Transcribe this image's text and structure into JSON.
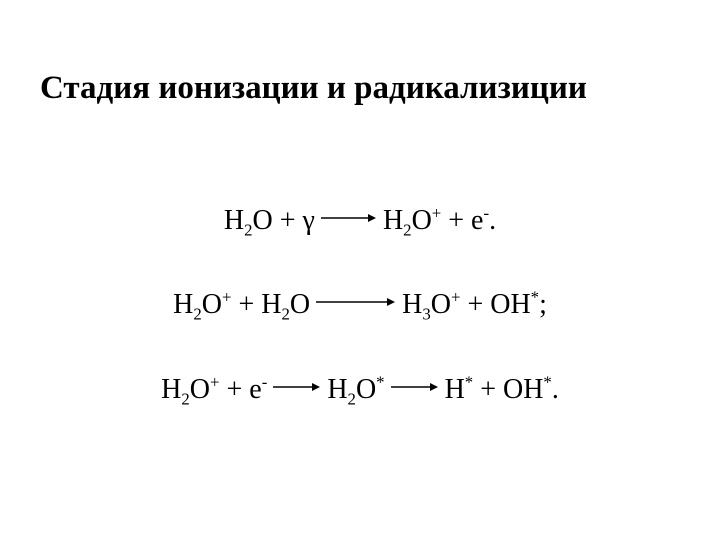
{
  "slide": {
    "title": "Стадия ионизации и радикализиции",
    "background_color": "#ffffff",
    "text_color": "#000000",
    "title_fontsize": 33,
    "title_fontweight": "bold",
    "body_fontsize": 28,
    "font_family": "Times New Roman",
    "arrow": {
      "stroke_color": "#000000",
      "stroke_width": 1.5,
      "head_width": 8,
      "head_height": 8
    },
    "equations": [
      {
        "id": "eq1",
        "arrow_lengths": [
          56
        ],
        "terms": [
          {
            "html": "H<sub>2</sub>O + γ"
          },
          {
            "arrow": true
          },
          {
            "html": "H<sub>2</sub>O<sup>+</sup> + e<sup>-</sup>."
          }
        ]
      },
      {
        "id": "eq2",
        "arrow_lengths": [
          80
        ],
        "terms": [
          {
            "html": "H<sub>2</sub>O<sup>+</sup> + H<sub>2</sub>O"
          },
          {
            "arrow": true
          },
          {
            "html": "H<sub>3</sub>O<sup>+</sup> + OH<sup>*</sup>;"
          }
        ]
      },
      {
        "id": "eq3",
        "arrow_lengths": [
          48,
          48
        ],
        "terms": [
          {
            "html": "H<sub>2</sub>O<sup>+</sup> + e<sup>-</sup>"
          },
          {
            "arrow": true
          },
          {
            "html": "H<sub>2</sub>O<sup>*</sup>"
          },
          {
            "arrow": true
          },
          {
            "html": "H<sup>*</sup> + OH<sup>*</sup>."
          }
        ]
      }
    ]
  }
}
